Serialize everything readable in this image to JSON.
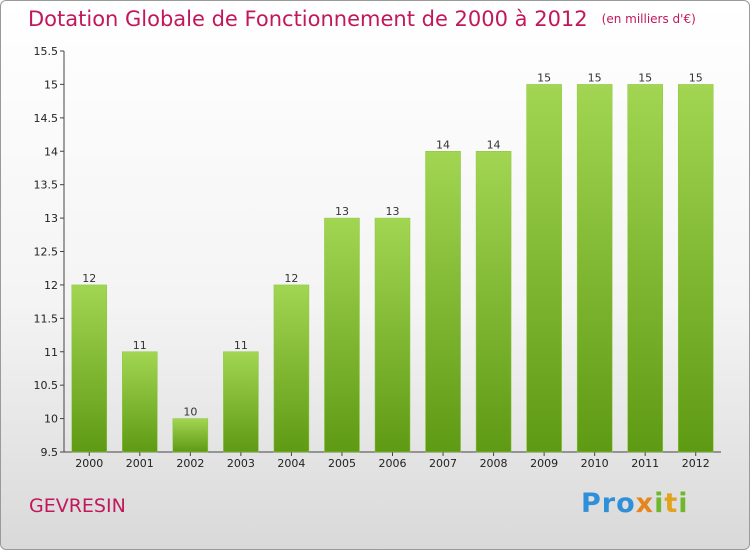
{
  "title": "Dotation Globale de Fonctionnement de 2000 à 2012",
  "unit": "(en milliers d'€)",
  "town": "GEVRESIN",
  "brand": "Proxiti",
  "colors": {
    "bar_light": "#9fd44e",
    "bar_dark": "#5f9a14",
    "title": "#c2185b"
  },
  "chart_data": {
    "type": "bar",
    "title": "Dotation Globale de Fonctionnement de 2000 à 2012",
    "subtitle": "(en milliers d'€)",
    "xlabel": "",
    "ylabel": "",
    "categories": [
      "2000",
      "2001",
      "2002",
      "2003",
      "2004",
      "2005",
      "2006",
      "2007",
      "2008",
      "2009",
      "2010",
      "2011",
      "2012"
    ],
    "values": [
      12,
      11,
      10,
      11,
      12,
      13,
      13,
      14,
      14,
      15,
      15,
      15,
      15
    ],
    "ylim": [
      9.5,
      15.5
    ],
    "yticks": [
      "9.5",
      "10",
      "10.5",
      "11",
      "11.5",
      "12",
      "12.5",
      "13",
      "13.5",
      "14",
      "14.5",
      "15",
      "15.5"
    ],
    "grid": false
  }
}
